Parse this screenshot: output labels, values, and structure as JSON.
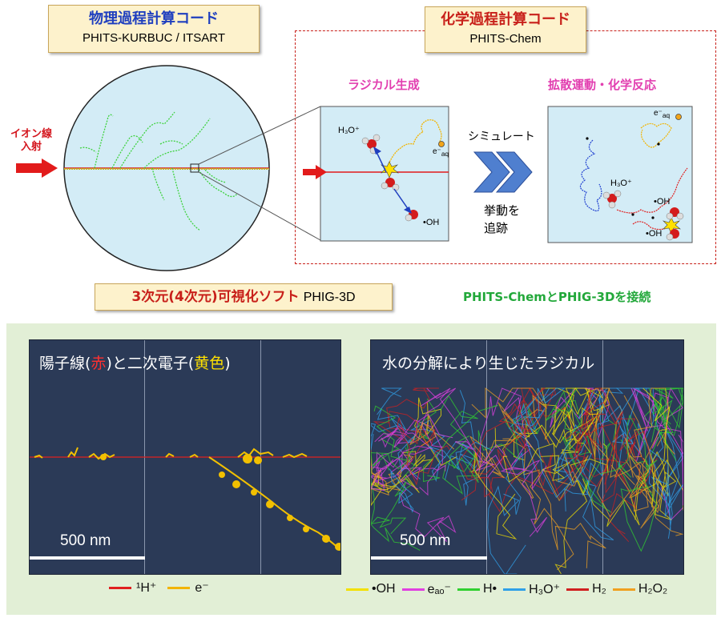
{
  "physics": {
    "title": "物理過程計算コード",
    "subtitle": "PHITS-KURBUC / ITSART"
  },
  "chemistry": {
    "title": "化学過程計算コード",
    "subtitle": "PHITS-Chem"
  },
  "ion_beam": {
    "line1": "イオン線",
    "line2": "入射"
  },
  "radical_gen": "ラジカル生成",
  "diffusion": "拡散運動・化学反応",
  "simulate": "シミュレート",
  "track": {
    "line1": "挙動を",
    "line2": "追跡"
  },
  "species": {
    "h3o": "H₃O⁺",
    "eaq": "e⁻",
    "eaq_sub": "aq",
    "oh": "•OH"
  },
  "viz": {
    "title_main": "3次元(4次元)可視化ソフト",
    "title_suffix": "PHIG-3D",
    "connect": "PHITS-ChemとPHIG-3Dを接続"
  },
  "panel_left": {
    "t1": "陽子線(",
    "red": "赤",
    "t2": ")と二次電子(",
    "yellow": "黄色",
    "t3": ")",
    "scale": "500 nm"
  },
  "panel_right": {
    "title": "水の分解により生じたラジカル",
    "scale": "500 nm"
  },
  "legend_left": [
    {
      "label": "¹H⁺",
      "color": "#e02020"
    },
    {
      "label": "e⁻",
      "color": "#f2b400"
    }
  ],
  "legend_right": [
    {
      "label": "•OH",
      "color": "#f3e000"
    },
    {
      "label": "eₐₒ⁻",
      "color": "#e040e0"
    },
    {
      "label": "H•",
      "color": "#30d030"
    },
    {
      "label": "H₃O⁺",
      "color": "#30a0e8"
    },
    {
      "label": "H₂",
      "color": "#d02020"
    },
    {
      "label": "H₂O₂",
      "color": "#f0a020"
    }
  ],
  "colors": {
    "accent_blue": "#1f3fbf",
    "accent_red": "#c8201a",
    "accent_green": "#22a83a",
    "arrow_red": "#e21b1b"
  }
}
